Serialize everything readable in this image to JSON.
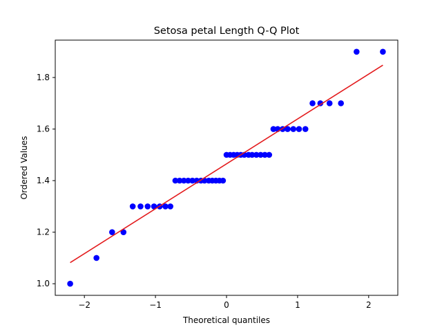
{
  "chart_data": {
    "type": "scatter",
    "title": "Setosa petal Length Q-Q Plot",
    "xlabel": "Theoretical quantiles",
    "ylabel": "Ordered Values",
    "xlim": [
      -2.41,
      2.41
    ],
    "ylim": [
      0.955,
      1.945
    ],
    "xticks": [
      -2,
      -1,
      0,
      1,
      2
    ],
    "xtick_labels": [
      "−2",
      "−1",
      "0",
      "1",
      "2"
    ],
    "yticks": [
      1.0,
      1.2,
      1.4,
      1.6,
      1.8
    ],
    "ytick_labels": [
      "1.0",
      "1.2",
      "1.4",
      "1.6",
      "1.8"
    ],
    "grid": false,
    "marker_color": "#0000ff",
    "line_color": "#e31a1c",
    "fit_line": {
      "x": [
        -2.2,
        2.2
      ],
      "y": [
        1.082,
        1.848
      ]
    },
    "series": [
      {
        "x": [
          -2.2,
          -1.83,
          -1.61,
          -1.45,
          -1.32,
          -1.21,
          -1.11,
          -1.02,
          -0.94,
          -0.86,
          -0.79,
          -0.72,
          -0.66,
          -0.6,
          -0.54,
          -0.48,
          -0.42,
          -0.36,
          -0.31,
          -0.25,
          -0.2,
          -0.15,
          -0.1,
          -0.05,
          0.0,
          0.05,
          0.1,
          0.15,
          0.2,
          0.25,
          0.31,
          0.36,
          0.42,
          0.48,
          0.54,
          0.6,
          0.66,
          0.72,
          0.79,
          0.86,
          0.94,
          1.02,
          1.11,
          1.21,
          1.32,
          1.45,
          1.61,
          1.83,
          2.2
        ],
        "y": [
          1.0,
          1.1,
          1.2,
          1.2,
          1.3,
          1.3,
          1.3,
          1.3,
          1.3,
          1.3,
          1.3,
          1.4,
          1.4,
          1.4,
          1.4,
          1.4,
          1.4,
          1.4,
          1.4,
          1.4,
          1.4,
          1.4,
          1.4,
          1.4,
          1.5,
          1.5,
          1.5,
          1.5,
          1.5,
          1.5,
          1.5,
          1.5,
          1.5,
          1.5,
          1.5,
          1.5,
          1.6,
          1.6,
          1.6,
          1.6,
          1.6,
          1.6,
          1.6,
          1.7,
          1.7,
          1.7,
          1.7,
          1.9,
          1.9
        ]
      }
    ]
  }
}
